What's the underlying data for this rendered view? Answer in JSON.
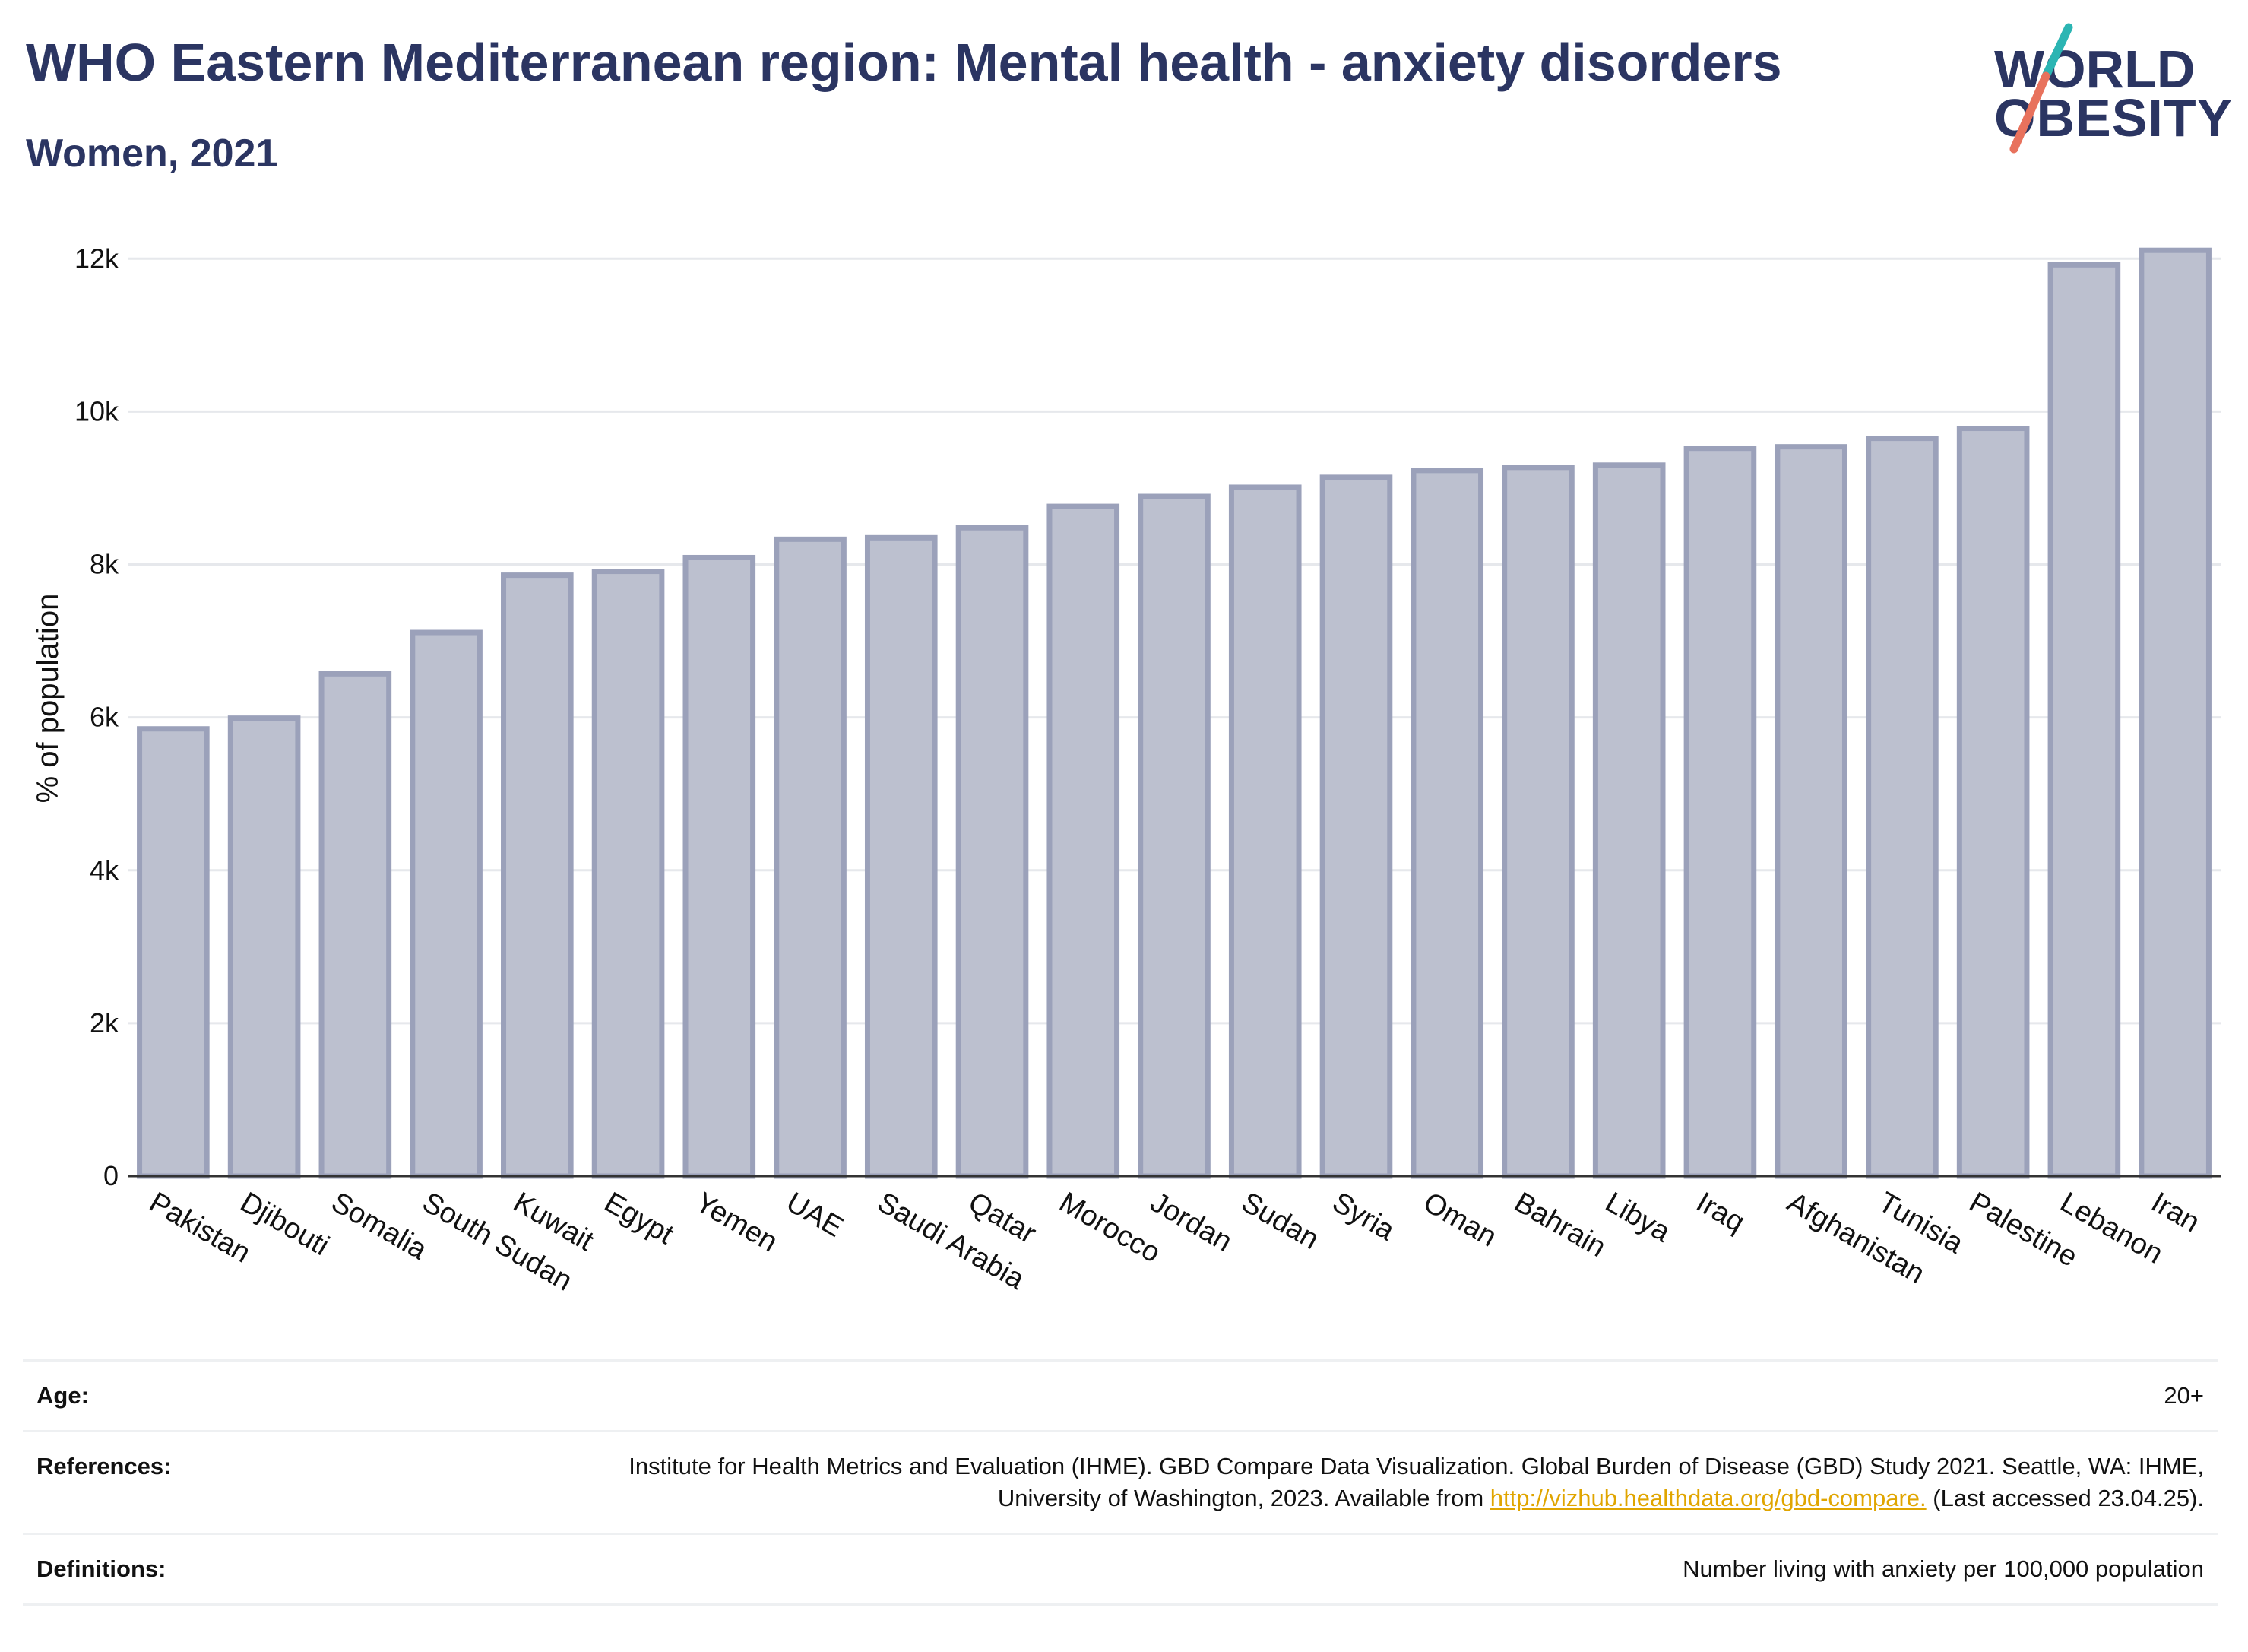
{
  "header": {
    "title": "WHO Eastern Mediterranean region: Mental health - anxiety disorders",
    "subtitle": "Women, 2021"
  },
  "logo": {
    "line1": "WORLD",
    "line2": "OBESITY",
    "colors": {
      "text": "#2b3562",
      "slash_teal": "#2bb5b3",
      "slash_coral": "#e8725d"
    }
  },
  "chart_data": {
    "type": "bar",
    "title": "WHO Eastern Mediterranean region: Mental health - anxiety disorders",
    "subtitle": "Women, 2021",
    "xlabel": "",
    "ylabel": "% of population",
    "ylim": [
      0,
      12500
    ],
    "yticks": [
      0,
      2000,
      4000,
      6000,
      8000,
      10000,
      12000
    ],
    "ytick_labels": [
      "0",
      "2k",
      "4k",
      "6k",
      "8k",
      "10k",
      "12k"
    ],
    "grid": true,
    "categories": [
      "Pakistan",
      "Djibouti",
      "Somalia",
      "South Sudan",
      "Kuwait",
      "Egypt",
      "Yemen",
      "UAE",
      "Saudi Arabia",
      "Qatar",
      "Morocco",
      "Jordan",
      "Sudan",
      "Syria",
      "Oman",
      "Bahrain",
      "Libya",
      "Iraq",
      "Afghanistan",
      "Tunisia",
      "Palestine",
      "Lebanon",
      "Iran"
    ],
    "values": [
      5850,
      5990,
      6570,
      7110,
      7860,
      7910,
      8090,
      8330,
      8350,
      8480,
      8760,
      8890,
      9010,
      9140,
      9230,
      9270,
      9300,
      9520,
      9540,
      9650,
      9780,
      11920,
      12110
    ],
    "colors": {
      "bar_fill": "#bcc0cf",
      "bar_stroke": "#9ba1ba",
      "grid": "#e6e8ec",
      "axis": "#333333",
      "text": "#111111"
    }
  },
  "info": {
    "age_label": "Age:",
    "age_value": "20+",
    "references_label": "References:",
    "references_text": "Institute for Health Metrics and Evaluation (IHME). GBD Compare Data Visualization. Global Burden of Disease (GBD) Study 2021. Seattle, WA: IHME, University of Washington, 2023. Available from",
    "references_link": "http://vizhub.healthdata.org/gbd-compare.",
    "references_suffix": "(Last accessed 23.04.25).",
    "definitions_label": "Definitions:",
    "definitions_value": "Number living with anxiety per 100,000 population"
  }
}
